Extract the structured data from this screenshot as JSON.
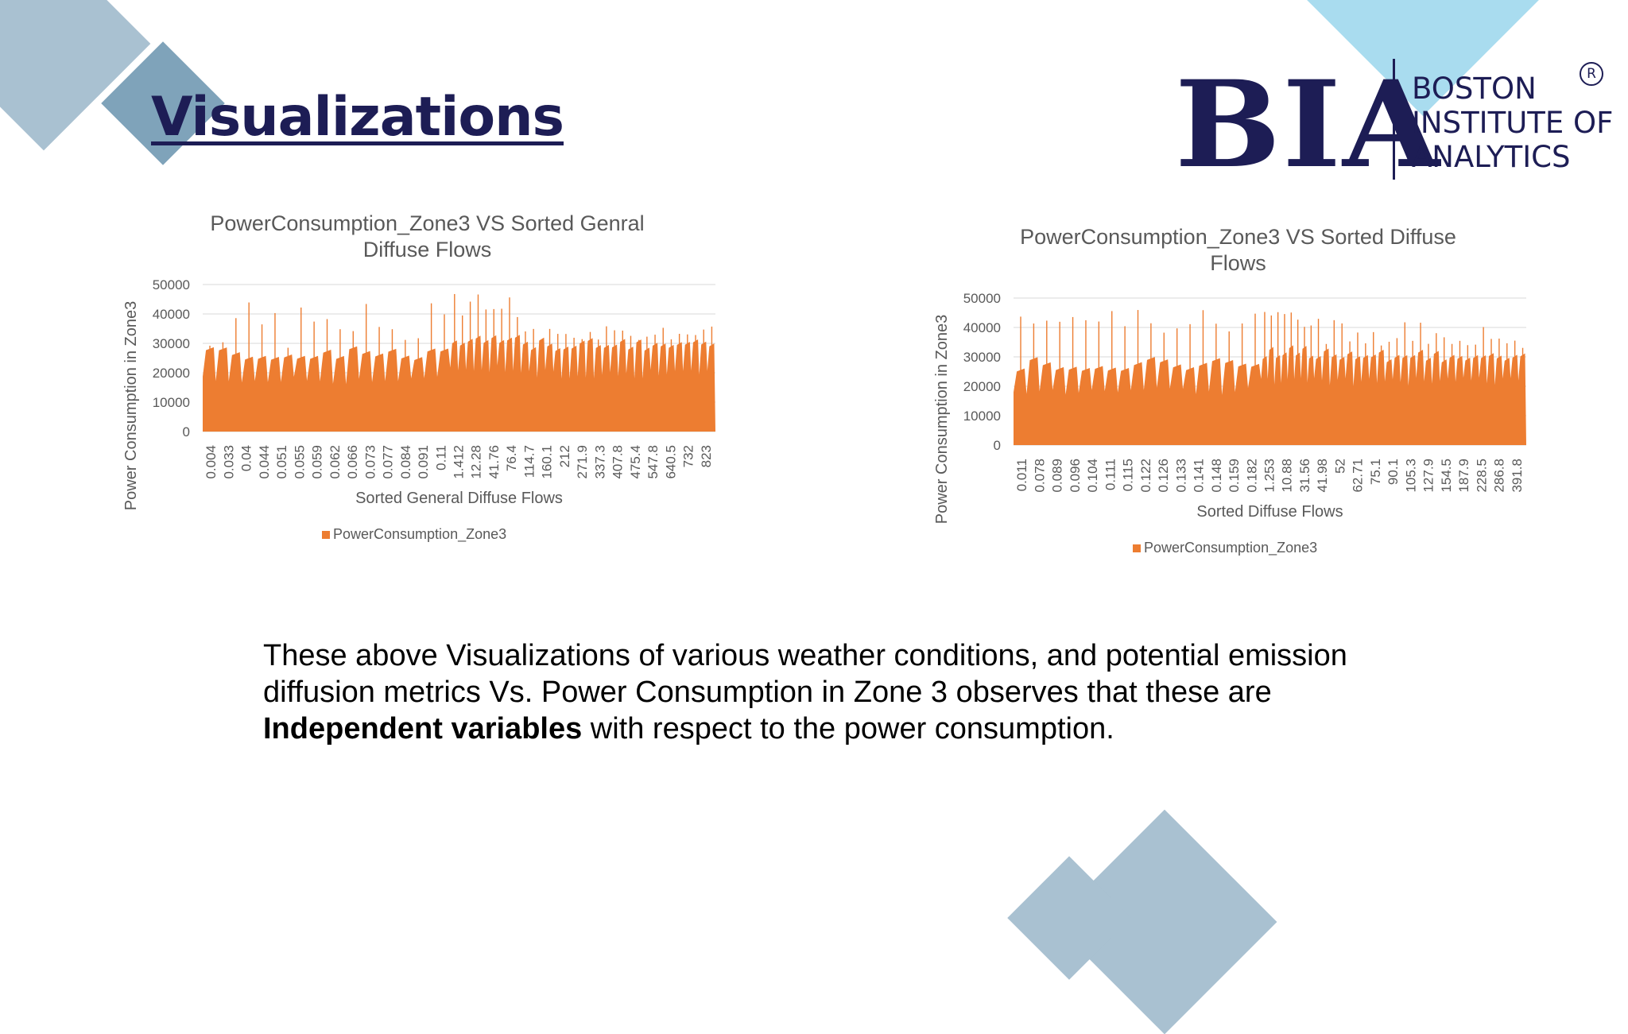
{
  "slide": {
    "title": "Visualizations",
    "colors": {
      "title": "#1d1d55",
      "decor_dark": "#a9c1d1",
      "decor_mid": "#7fa3ba",
      "decor_light": "#a9dcef",
      "series": "#ed7d31"
    }
  },
  "logo": {
    "mark": "BIA",
    "lines": [
      "BOSTON",
      "INSTITUTE OF",
      "ANALYTICS"
    ],
    "registered": "R"
  },
  "chart_data": [
    {
      "type": "area",
      "title": "PowerConsumption_Zone3 VS Sorted Genral Diffuse Flows",
      "title_lines": [
        "PowerConsumption_Zone3 VS Sorted Genral",
        "Diffuse Flows"
      ],
      "xlabel": "Sorted General Diffuse Flows",
      "ylabel": "Power Consumption in Zone3",
      "ylim": [
        0,
        50000
      ],
      "yticks": [
        0,
        10000,
        20000,
        30000,
        40000,
        50000
      ],
      "categories": [
        "0.004",
        "0.033",
        "0.04",
        "0.044",
        "0.051",
        "0.055",
        "0.059",
        "0.062",
        "0.066",
        "0.073",
        "0.077",
        "0.084",
        "0.091",
        "0.11",
        "1.412",
        "12.28",
        "41.76",
        "76.4",
        "114.7",
        "160.1",
        "212",
        "271.9",
        "337.3",
        "407.8",
        "475.4",
        "547.8",
        "640.5",
        "732",
        "823"
      ],
      "series": [
        {
          "name": "PowerConsumption_Zone3",
          "regions": [
            {
              "from": "0.004",
              "to": "0.11",
              "base": 16000,
              "cycle_mean": 26000,
              "peak_range": [
                28000,
                45000
              ]
            },
            {
              "from": "1.412",
              "to": "114.7",
              "base": 20000,
              "cycle_mean": 30000,
              "peak_range": [
                38000,
                47000
              ]
            },
            {
              "from": "114.7",
              "to": "823",
              "base": 18000,
              "cycle_mean": 29000,
              "peak_range": [
                31000,
                36000
              ]
            }
          ]
        }
      ],
      "legend": "bottom",
      "grid": true
    },
    {
      "type": "area",
      "title": "PowerConsumption_Zone3 VS Sorted Diffuse Flows",
      "title_lines": [
        "PowerConsumption_Zone3 VS Sorted Diffuse",
        "Flows"
      ],
      "xlabel": "Sorted Diffuse Flows",
      "ylabel": "Power Consumption in Zone3",
      "ylim": [
        0,
        50000
      ],
      "yticks": [
        0,
        10000,
        20000,
        30000,
        40000,
        50000
      ],
      "categories": [
        "0.011",
        "0.078",
        "0.089",
        "0.096",
        "0.104",
        "0.111",
        "0.115",
        "0.122",
        "0.126",
        "0.133",
        "0.141",
        "0.148",
        "0.159",
        "0.182",
        "1.253",
        "10.88",
        "31.56",
        "41.98",
        "52",
        "62.71",
        "75.1",
        "90.1",
        "105.3",
        "127.9",
        "154.5",
        "187.9",
        "228.5",
        "286.8",
        "391.8"
      ],
      "series": [
        {
          "name": "PowerConsumption_Zone3",
          "regions": [
            {
              "from": "0.011",
              "to": "0.182",
              "base": 17000,
              "cycle_mean": 27000,
              "peak_range": [
                38000,
                46000
              ]
            },
            {
              "from": "1.253",
              "to": "41.98",
              "base": 20000,
              "cycle_mean": 31000,
              "peak_range": [
                40000,
                47000
              ]
            },
            {
              "from": "41.98",
              "to": "391.8",
              "base": 20000,
              "cycle_mean": 30000,
              "peak_range": [
                33000,
                43000
              ]
            }
          ]
        }
      ],
      "legend": "bottom",
      "grid": true
    }
  ],
  "caption": {
    "line1": "These above Visualizations of various weather conditions, and potential emission",
    "line2": "diffusion metrics Vs. Power Consumption in Zone 3  observes that these are",
    "bold": "Independent variables",
    "rest": " with respect to the power consumption."
  }
}
